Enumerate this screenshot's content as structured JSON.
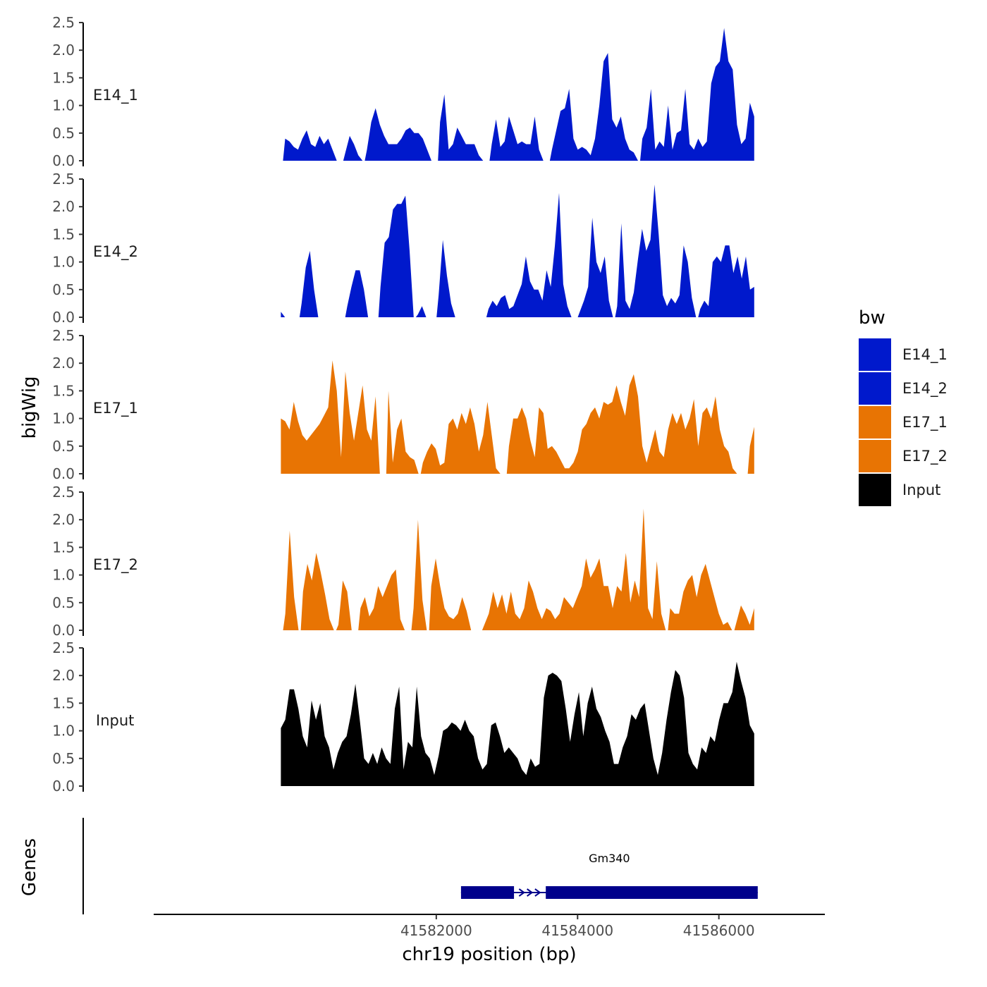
{
  "chart_data": {
    "type": "area",
    "chromosome": "chr19",
    "xlabel": "chr19 position (bp)",
    "ylabel": "bigWig",
    "genes_label": "Genes",
    "xlim": [
      41578000,
      41587500
    ],
    "data_range": [
      41579800,
      41586500
    ],
    "ylim": [
      0,
      2.5
    ],
    "yticks": [
      "0.0",
      "0.5",
      "1.0",
      "1.5",
      "2.0",
      "2.5"
    ],
    "xticks": [
      {
        "value": 41582000,
        "label": "41582000"
      },
      {
        "value": 41584000,
        "label": "41584000"
      },
      {
        "value": 41586000,
        "label": "41586000"
      }
    ],
    "legend": {
      "title": "bw",
      "position": "right",
      "entries": [
        {
          "name": "E14_1",
          "color": "#0019cc"
        },
        {
          "name": "E14_2",
          "color": "#0019cc"
        },
        {
          "name": "E17_1",
          "color": "#e87403"
        },
        {
          "name": "E17_2",
          "color": "#e87403"
        },
        {
          "name": "Input",
          "color": "#000000"
        }
      ]
    },
    "series": [
      {
        "name": "E14_1",
        "color": "#0019cc",
        "values": [
          0.0,
          0.4,
          0.35,
          0.25,
          0.2,
          0.4,
          0.55,
          0.3,
          0.25,
          0.45,
          0.3,
          0.4,
          0.2,
          0.0,
          0.0,
          0.15,
          0.45,
          0.3,
          0.1,
          0.0,
          0.2,
          0.7,
          0.95,
          0.65,
          0.45,
          0.3,
          0.3,
          0.3,
          0.4,
          0.55,
          0.6,
          0.5,
          0.5,
          0.4,
          0.2,
          0.0,
          0.0,
          0.7,
          1.2,
          0.2,
          0.3,
          0.6,
          0.45,
          0.3,
          0.3,
          0.3,
          0.1,
          0.0,
          0.0,
          0.3,
          0.75,
          0.25,
          0.35,
          0.8,
          0.55,
          0.3,
          0.35,
          0.3,
          0.3,
          0.8,
          0.2,
          0.0,
          0.0,
          0.2,
          0.55,
          0.9,
          0.95,
          1.3,
          0.4,
          0.2,
          0.25,
          0.2,
          0.1,
          0.4,
          1.0,
          1.8,
          1.95,
          0.75,
          0.6,
          0.8,
          0.4,
          0.2,
          0.15,
          0.0,
          0.4,
          0.6,
          1.3,
          0.2,
          0.35,
          0.25,
          1.0,
          0.2,
          0.5,
          0.55,
          1.3,
          0.3,
          0.2,
          0.4,
          0.25,
          0.35,
          1.4,
          1.7,
          1.8,
          2.4,
          1.8,
          1.65,
          0.65,
          0.3,
          0.4,
          1.05,
          0.8
        ]
      },
      {
        "name": "E14_2",
        "color": "#0019cc",
        "values": [
          0.1,
          0.0,
          0.0,
          0.0,
          0.0,
          0.25,
          0.9,
          1.2,
          0.5,
          0.0,
          0.0,
          0.0,
          0.0,
          0.0,
          0.0,
          0.0,
          0.2,
          0.55,
          0.85,
          0.85,
          0.5,
          0.0,
          0.0,
          0.0,
          0.55,
          1.35,
          1.45,
          1.95,
          2.05,
          2.05,
          2.2,
          1.2,
          0.0,
          0.05,
          0.2,
          0.0,
          0.0,
          0.0,
          0.4,
          1.4,
          0.75,
          0.25,
          0.0,
          0.0,
          0.0,
          0.0,
          0.0,
          0.0,
          0.0,
          0.0,
          0.15,
          0.3,
          0.2,
          0.35,
          0.4,
          0.15,
          0.2,
          0.4,
          0.6,
          1.1,
          0.65,
          0.5,
          0.5,
          0.3,
          0.85,
          0.55,
          1.3,
          2.25,
          0.6,
          0.2,
          0.0,
          0.0,
          0.1,
          0.3,
          0.55,
          1.8,
          1.0,
          0.8,
          1.1,
          0.3,
          0.0,
          0.2,
          1.7,
          0.3,
          0.15,
          0.45,
          1.05,
          1.6,
          1.2,
          1.4,
          2.4,
          1.5,
          0.4,
          0.2,
          0.35,
          0.25,
          0.4,
          1.3,
          1.0,
          0.35,
          0.0,
          0.15,
          0.3,
          0.2,
          1.0,
          1.1,
          1.0,
          1.3,
          1.3,
          0.8,
          1.1,
          0.7,
          1.1,
          0.5,
          0.55
        ]
      },
      {
        "name": "E17_1",
        "color": "#e87403",
        "values": [
          1.0,
          0.95,
          0.8,
          1.3,
          0.95,
          0.7,
          0.6,
          0.7,
          0.8,
          0.9,
          1.05,
          1.2,
          2.05,
          1.5,
          0.3,
          1.85,
          1.1,
          0.6,
          1.1,
          1.6,
          0.8,
          0.6,
          1.4,
          0.0,
          0.0,
          1.5,
          0.2,
          0.8,
          1.0,
          0.4,
          0.3,
          0.25,
          0.0,
          0.2,
          0.4,
          0.55,
          0.45,
          0.15,
          0.2,
          0.9,
          1.0,
          0.8,
          1.1,
          0.9,
          1.2,
          0.9,
          0.4,
          0.7,
          1.3,
          0.7,
          0.1,
          0.0,
          0.0,
          0.5,
          1.0,
          1.0,
          1.2,
          1.0,
          0.6,
          0.3,
          1.2,
          1.1,
          0.45,
          0.5,
          0.4,
          0.25,
          0.1,
          0.1,
          0.2,
          0.4,
          0.8,
          0.9,
          1.1,
          1.2,
          1.0,
          1.3,
          1.25,
          1.3,
          1.6,
          1.3,
          1.05,
          1.6,
          1.8,
          1.4,
          0.5,
          0.2,
          0.5,
          0.8,
          0.4,
          0.3,
          0.8,
          1.1,
          0.9,
          1.1,
          0.8,
          1.0,
          1.35,
          0.5,
          1.1,
          1.2,
          1.0,
          1.4,
          0.8,
          0.5,
          0.4,
          0.1,
          0.0,
          0.0,
          0.0,
          0.5,
          0.85
        ]
      },
      {
        "name": "E17_2",
        "color": "#e87403",
        "values": [
          0.0,
          0.3,
          1.8,
          0.6,
          0.0,
          0.7,
          1.2,
          0.9,
          1.4,
          1.05,
          0.65,
          0.2,
          0.0,
          0.1,
          0.9,
          0.7,
          0.0,
          0.0,
          0.4,
          0.6,
          0.25,
          0.4,
          0.8,
          0.6,
          0.8,
          1.0,
          1.1,
          0.2,
          0.0,
          0.0,
          0.4,
          2.0,
          0.55,
          0.0,
          0.8,
          1.3,
          0.8,
          0.4,
          0.25,
          0.2,
          0.3,
          0.6,
          0.35,
          0.0,
          0.0,
          0.0,
          0.1,
          0.3,
          0.7,
          0.4,
          0.65,
          0.3,
          0.7,
          0.3,
          0.2,
          0.4,
          0.9,
          0.7,
          0.4,
          0.2,
          0.4,
          0.35,
          0.2,
          0.3,
          0.6,
          0.5,
          0.4,
          0.6,
          0.8,
          1.3,
          0.95,
          1.1,
          1.3,
          0.8,
          0.8,
          0.4,
          0.8,
          0.7,
          1.4,
          0.5,
          0.9,
          0.6,
          2.2,
          0.4,
          0.2,
          1.25,
          0.3,
          0.0,
          0.4,
          0.3,
          0.3,
          0.7,
          0.9,
          1.0,
          0.6,
          1.0,
          1.2,
          0.9,
          0.6,
          0.3,
          0.1,
          0.15,
          0.0,
          0.15,
          0.45,
          0.3,
          0.1,
          0.4
        ]
      },
      {
        "name": "Input",
        "color": "#000000",
        "values": [
          1.05,
          1.2,
          1.75,
          1.75,
          1.4,
          0.9,
          0.7,
          1.55,
          1.2,
          1.5,
          0.9,
          0.7,
          0.3,
          0.6,
          0.8,
          0.9,
          1.3,
          1.85,
          1.2,
          0.5,
          0.4,
          0.6,
          0.4,
          0.7,
          0.5,
          0.4,
          1.4,
          1.8,
          0.3,
          0.8,
          0.7,
          1.8,
          0.9,
          0.6,
          0.5,
          0.2,
          0.55,
          1.0,
          1.05,
          1.15,
          1.1,
          1.0,
          1.2,
          1.0,
          0.9,
          0.5,
          0.3,
          0.4,
          1.1,
          1.15,
          0.9,
          0.6,
          0.7,
          0.6,
          0.5,
          0.3,
          0.2,
          0.5,
          0.35,
          0.4,
          1.6,
          2.0,
          2.05,
          2.0,
          1.9,
          1.4,
          0.8,
          1.3,
          1.7,
          0.9,
          1.5,
          1.8,
          1.4,
          1.25,
          1.0,
          0.8,
          0.4,
          0.4,
          0.7,
          0.9,
          1.3,
          1.2,
          1.4,
          1.5,
          1.0,
          0.5,
          0.2,
          0.6,
          1.2,
          1.7,
          2.1,
          2.0,
          1.6,
          0.6,
          0.4,
          0.3,
          0.7,
          0.6,
          0.9,
          0.8,
          1.2,
          1.5,
          1.5,
          1.7,
          2.25,
          1.9,
          1.6,
          1.1,
          0.95
        ]
      }
    ],
    "gene": {
      "name": "Gm340",
      "start": 41582350,
      "end": 41586550,
      "strand": "+",
      "exons": [
        [
          41582350,
          41583100
        ],
        [
          41583550,
          41586550
        ]
      ],
      "color": "#00008b"
    }
  }
}
